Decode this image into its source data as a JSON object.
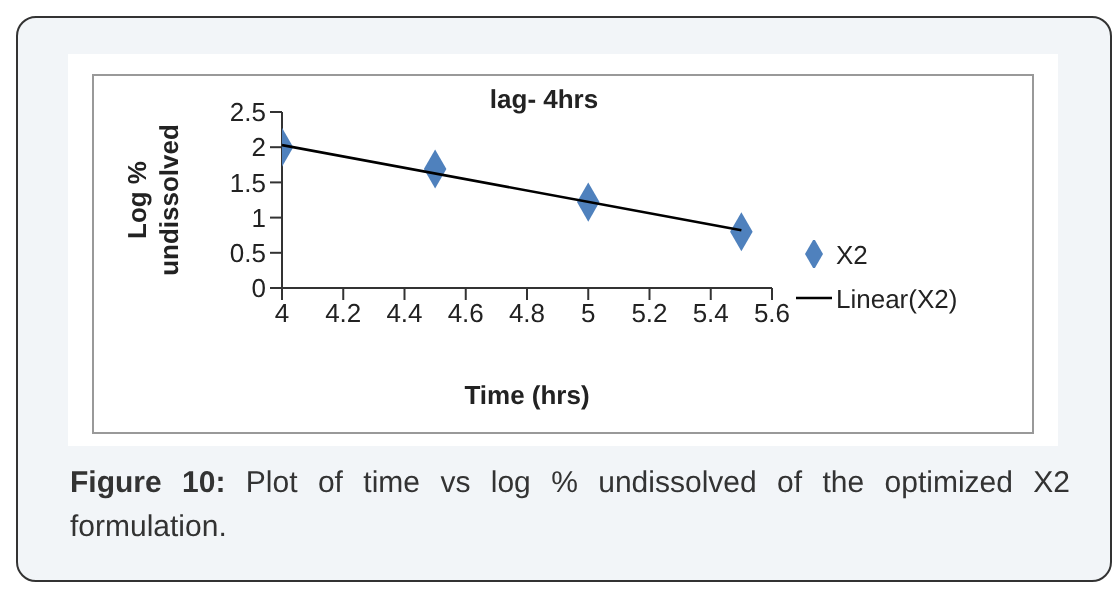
{
  "chart_data": {
    "type": "scatter",
    "title": "lag- 4hrs",
    "xlabel": "Time (hrs)",
    "ylabel": "Log % undissolved",
    "xlim": [
      4,
      5.6
    ],
    "xticks": [
      4,
      4.2,
      4.4,
      4.6,
      4.8,
      5,
      5.2,
      5.4,
      5.6
    ],
    "ylim": [
      0,
      2.5
    ],
    "yticks": [
      0,
      0.5,
      1,
      1.5,
      2,
      2.5
    ],
    "series": [
      {
        "name": "X2",
        "color": "#4f81bd",
        "marker": "diamond",
        "x": [
          4,
          4.5,
          5,
          5.5
        ],
        "values": [
          2.0,
          1.69,
          1.22,
          0.8
        ]
      },
      {
        "name": "Linear(X2)",
        "type": "line",
        "color": "#000000",
        "marker": "none",
        "x": [
          4,
          5.5
        ],
        "values": [
          2.03,
          0.82
        ]
      }
    ],
    "legend": "right",
    "grid": false,
    "annotations": [
      "Figure 10:",
      "Plot of time vs log % undissolved of the optimized X2 formulation."
    ]
  }
}
